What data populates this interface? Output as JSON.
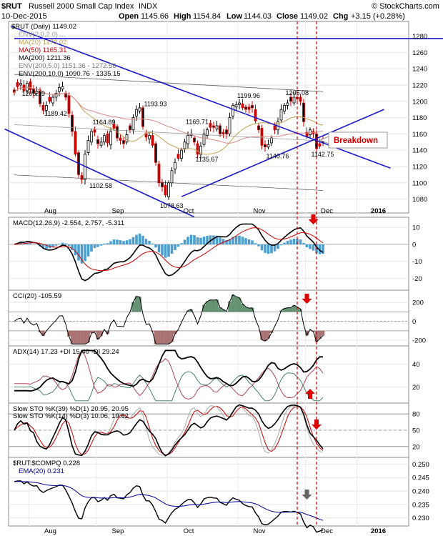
{
  "header": {
    "symbol": "$RUT",
    "name": "Russell 2000 Small Cap Index",
    "exchange": "INDX",
    "date": "10-Dec-2015",
    "open_label": "Open",
    "open": "1145.66",
    "high_label": "High",
    "high": "1154.84",
    "low_label": "Low",
    "low": "1144.03",
    "close_label": "Close",
    "close": "1149.02",
    "chg_label": "Chg",
    "chg": "+3.15 (+0.28%)",
    "brand": "© StockCharts.com"
  },
  "colors": {
    "blue": "#0000cc",
    "red": "#cc0000",
    "brown": "#c8a050",
    "gray": "#888888",
    "green": "#337755",
    "macdBar": "#4499cc"
  },
  "chart_data": [
    {
      "type": "candlestick",
      "panel": "price",
      "title": "$RUT (Daily) 1149.02",
      "legend": [
        {
          "label": "ENV(2,0,2.0) ...",
          "color": "#888888"
        },
        {
          "label": "MA(20) 1173.02",
          "color": "#c8a050"
        },
        {
          "label": "MA(50) 1165.31",
          "color": "#cc0000"
        },
        {
          "label": "MA(200) 1211.36",
          "color": "#000000"
        },
        {
          "label": "ENV(200,5.0) 1151.36 - 1272.56",
          "color": "#888888"
        },
        {
          "label": "ENV(200,10.0) 1090.76 - 1335.15",
          "color": "#000000"
        }
      ],
      "y_ticks": [
        1080,
        1100,
        1120,
        1140,
        1160,
        1180,
        1200,
        1220,
        1240,
        1260,
        1280
      ],
      "ylim": [
        1063,
        1298
      ],
      "x_months": [
        "Aug",
        "Sep",
        "Oct",
        "Nov",
        "Dec",
        "2016"
      ],
      "annotations": [
        "1205.19",
        "1189.42",
        "1193.93",
        "1164.89",
        "1102.58",
        "1078.63",
        "1169.71",
        "1135.67",
        "1199.96",
        "1140.76",
        "1205.08",
        "1142.75"
      ],
      "callout": "Breakdown",
      "dates": [
        "Jul-27",
        "Jul-28",
        "Jul-29",
        "Jul-30",
        "Jul-31",
        "Aug-03",
        "Aug-04",
        "Aug-05",
        "Aug-06",
        "Aug-07",
        "Aug-10",
        "Aug-11",
        "Aug-12",
        "Aug-13",
        "Aug-14",
        "Aug-17",
        "Aug-18",
        "Aug-19",
        "Aug-20",
        "Aug-21",
        "Aug-24",
        "Aug-25",
        "Aug-26",
        "Aug-27",
        "Aug-28",
        "Aug-31",
        "Sep-01",
        "Sep-02",
        "Sep-03",
        "Sep-04",
        "Sep-08",
        "Sep-09",
        "Sep-10",
        "Sep-11",
        "Sep-14",
        "Sep-15",
        "Sep-16",
        "Sep-17",
        "Sep-18",
        "Sep-21",
        "Sep-22",
        "Sep-23",
        "Sep-24",
        "Sep-25",
        "Sep-28",
        "Sep-29",
        "Sep-30",
        "Oct-01",
        "Oct-02",
        "Oct-05",
        "Oct-06",
        "Oct-07",
        "Oct-08",
        "Oct-09",
        "Oct-12",
        "Oct-13",
        "Oct-14",
        "Oct-15",
        "Oct-16",
        "Oct-19",
        "Oct-20",
        "Oct-21",
        "Oct-22",
        "Oct-23",
        "Oct-26",
        "Oct-27",
        "Oct-28",
        "Oct-29",
        "Oct-30",
        "Nov-02",
        "Nov-03",
        "Nov-04",
        "Nov-05",
        "Nov-06",
        "Nov-09",
        "Nov-10",
        "Nov-11",
        "Nov-12",
        "Nov-13",
        "Nov-16",
        "Nov-17",
        "Nov-18",
        "Nov-19",
        "Nov-20",
        "Nov-23",
        "Nov-24",
        "Nov-25",
        "Nov-27",
        "Nov-30",
        "Dec-01",
        "Dec-02",
        "Dec-03",
        "Dec-04",
        "Dec-07",
        "Dec-08",
        "Dec-09",
        "Dec-10"
      ],
      "closes": [
        1211,
        1218,
        1222,
        1213,
        1222,
        1214,
        1210,
        1212,
        1197,
        1189,
        1195,
        1200,
        1205,
        1210,
        1217,
        1218,
        1205,
        1185,
        1163,
        1135,
        1110,
        1104,
        1135,
        1152,
        1163,
        1162,
        1148,
        1150,
        1158,
        1149,
        1163,
        1167,
        1155,
        1152,
        1148,
        1159,
        1165,
        1180,
        1190,
        1192,
        1169,
        1156,
        1158,
        1146,
        1125,
        1100,
        1095,
        1085,
        1100,
        1115,
        1125,
        1130,
        1140,
        1150,
        1158,
        1160,
        1150,
        1135,
        1145,
        1160,
        1165,
        1168,
        1168,
        1170,
        1160,
        1160,
        1160,
        1180,
        1195,
        1196,
        1198,
        1192,
        1190,
        1190,
        1192,
        1176,
        1165,
        1146,
        1144,
        1147,
        1155,
        1165,
        1175,
        1190,
        1195,
        1198,
        1200,
        1205,
        1203,
        1200,
        1175,
        1157,
        1165,
        1160,
        1142,
        1145,
        1149
      ]
    },
    {
      "type": "line",
      "panel": "macd",
      "title": "MACD(12,26,9) -2.554, 2.757, -5.311",
      "series": [
        {
          "name": "MACD"
        },
        {
          "name": "Signal"
        },
        {
          "name": "Histogram"
        }
      ],
      "y_ticks": [
        10,
        0,
        -10,
        -20
      ],
      "ylim": [
        -27,
        16
      ]
    },
    {
      "type": "line",
      "panel": "cci",
      "title": "CCI(20) -105.59",
      "y_ticks": [
        200,
        0,
        -200
      ],
      "ylim": [
        -260,
        330
      ]
    },
    {
      "type": "line",
      "panel": "adx",
      "title": "ADX(14) 17.23 +DI 15.40 -DI 29.24",
      "series": [
        {
          "name": "ADX(14) 17.23"
        },
        {
          "name": "+DI 15.40"
        },
        {
          "name": "-DI 29.24"
        }
      ],
      "y_ticks": [
        40,
        20
      ],
      "ylim": [
        6,
        56
      ]
    },
    {
      "type": "line",
      "panel": "sto",
      "title": "Slow STO %K(39) %D(1) 20.95, 20.95",
      "subtitle": "Slow STO %K(14) %D(3) 10.06, 19.62",
      "y_ticks": [
        80,
        50,
        20
      ],
      "ylim": [
        0,
        100
      ]
    },
    {
      "type": "line",
      "panel": "ratio",
      "title": "$RUT:$COMPQ 0.228",
      "series": [
        {
          "name": "EMA(20) 0.231"
        }
      ],
      "y_ticks": [
        0.25,
        0.245,
        0.24,
        0.235,
        0.23
      ],
      "ylim": [
        0.227,
        0.2525
      ]
    }
  ]
}
